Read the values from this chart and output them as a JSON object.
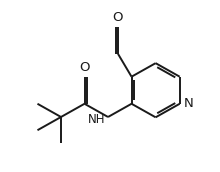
{
  "background_color": "#ffffff",
  "line_color": "#1a1a1a",
  "line_width": 1.4,
  "font_size": 8.5,
  "xlim": [
    0,
    10
  ],
  "ylim": [
    0,
    8
  ]
}
